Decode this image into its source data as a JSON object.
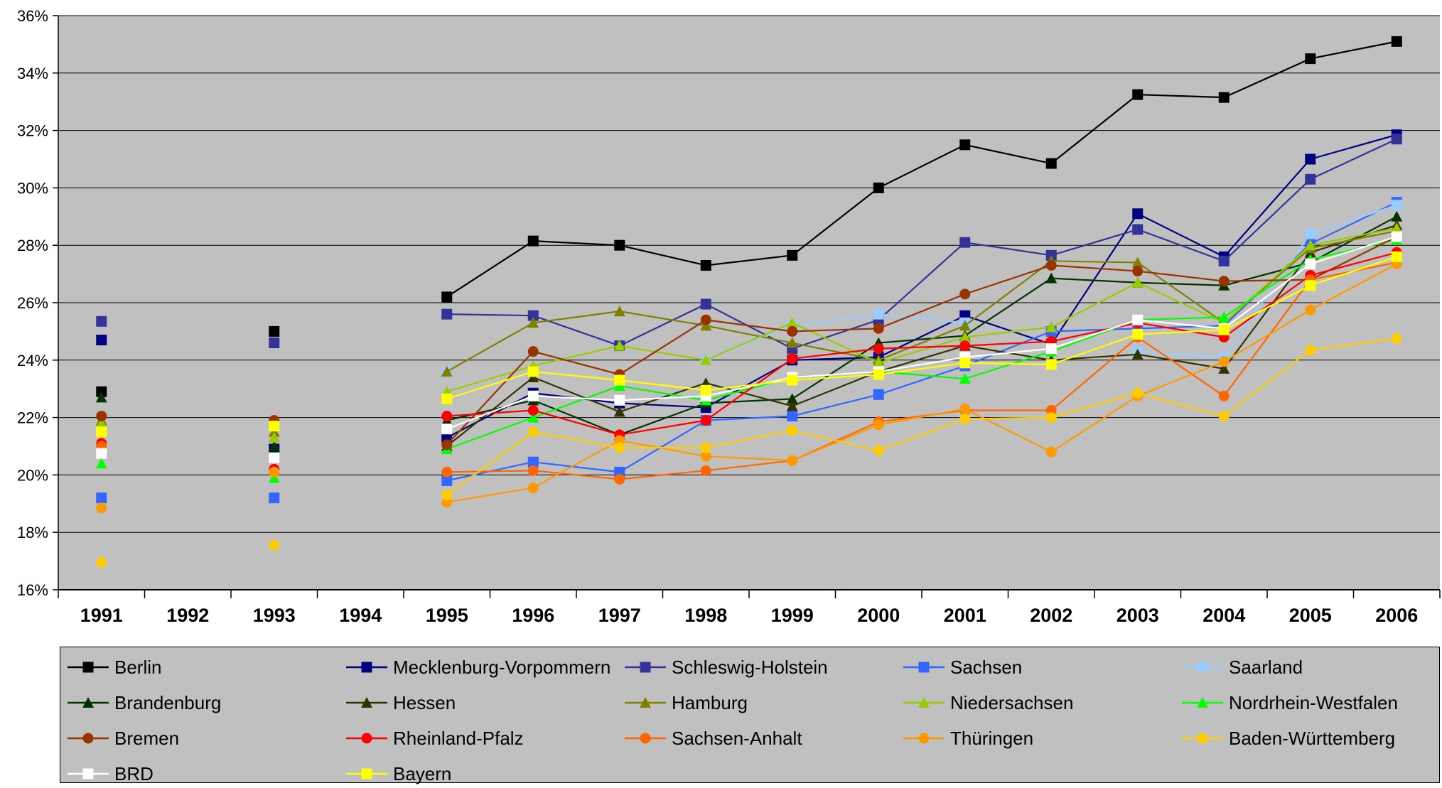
{
  "chart_data": {
    "type": "line",
    "title": "",
    "xlabel": "",
    "ylabel": "",
    "x": [
      "1991",
      "1992",
      "1993",
      "1994",
      "1995",
      "1996",
      "1997",
      "1998",
      "1999",
      "2000",
      "2001",
      "2002",
      "2003",
      "2004",
      "2005",
      "2006"
    ],
    "yticks": [
      "16%",
      "18%",
      "20%",
      "22%",
      "24%",
      "26%",
      "28%",
      "30%",
      "32%",
      "34%",
      "36%"
    ],
    "ylim": [
      16,
      36
    ],
    "y_unit": "%",
    "grid": "horizontal",
    "legend_position": "bottom",
    "series": [
      {
        "name": "Berlin",
        "color": "#000000",
        "marker": "square",
        "values": [
          22.9,
          null,
          25.0,
          null,
          26.2,
          28.15,
          28.0,
          27.3,
          27.65,
          30.0,
          31.5,
          30.85,
          33.25,
          33.15,
          34.5,
          35.1
        ]
      },
      {
        "name": "Mecklenburg-Vorpommern",
        "color": "#000080",
        "marker": "square",
        "values": [
          24.7,
          null,
          20.9,
          null,
          21.3,
          22.85,
          22.5,
          22.35,
          24.0,
          24.1,
          25.55,
          24.55,
          29.1,
          27.6,
          31.0,
          31.85
        ]
      },
      {
        "name": "Schleswig-Holstein",
        "color": "#333399",
        "marker": "square",
        "values": [
          25.35,
          null,
          24.6,
          null,
          25.6,
          25.55,
          24.5,
          25.95,
          24.4,
          25.4,
          28.1,
          27.65,
          28.55,
          27.45,
          30.3,
          31.7
        ]
      },
      {
        "name": "Sachsen",
        "color": "#3366ff",
        "marker": "square",
        "values": [
          19.2,
          null,
          19.2,
          null,
          19.8,
          20.45,
          20.1,
          21.9,
          22.05,
          22.8,
          23.8,
          25.0,
          25.1,
          25.2,
          28.05,
          29.5
        ]
      },
      {
        "name": "Saarland",
        "color": "#99ccff",
        "marker": "square",
        "values": [
          null,
          null,
          null,
          null,
          23.6,
          null,
          null,
          24.0,
          25.2,
          25.6,
          25.3,
          null,
          24.3,
          24.1,
          28.4,
          29.4
        ]
      },
      {
        "name": "Brandenburg",
        "color": "#003300",
        "marker": "triangle",
        "values": [
          22.7,
          null,
          21.0,
          null,
          21.9,
          22.6,
          21.4,
          22.5,
          22.65,
          24.6,
          24.85,
          26.85,
          26.7,
          26.6,
          27.4,
          29.0
        ]
      },
      {
        "name": "Hessen",
        "color": "#333300",
        "marker": "triangle",
        "values": [
          null,
          null,
          null,
          null,
          21.0,
          23.4,
          22.2,
          23.2,
          22.4,
          23.6,
          24.5,
          24.0,
          24.2,
          23.7,
          27.75,
          28.7
        ]
      },
      {
        "name": "Hamburg",
        "color": "#808000",
        "marker": "triangle",
        "values": [
          21.9,
          null,
          21.5,
          null,
          23.6,
          25.3,
          25.7,
          25.2,
          24.6,
          24.0,
          25.2,
          27.45,
          27.4,
          25.3,
          27.9,
          28.5
        ]
      },
      {
        "name": "Niedersachsen",
        "color": "#99cc00",
        "marker": "triangle",
        "values": [
          21.8,
          null,
          21.3,
          null,
          22.9,
          23.8,
          24.5,
          24.0,
          25.3,
          23.9,
          24.8,
          25.15,
          26.7,
          25.3,
          28.0,
          28.6
        ]
      },
      {
        "name": "Nordrhein-Westfalen",
        "color": "#00ff00",
        "marker": "triangle",
        "values": [
          20.4,
          null,
          19.9,
          null,
          20.9,
          22.0,
          23.1,
          22.6,
          23.4,
          23.6,
          23.35,
          24.3,
          25.4,
          25.5,
          27.5,
          28.2
        ]
      },
      {
        "name": "Bremen",
        "color": "#993300",
        "marker": "circle",
        "values": [
          22.05,
          null,
          21.9,
          null,
          21.05,
          24.3,
          23.5,
          25.4,
          25.0,
          25.1,
          26.3,
          27.3,
          27.1,
          26.75,
          26.8,
          28.3
        ]
      },
      {
        "name": "Rheinland-Pfalz",
        "color": "#ff0000",
        "marker": "circle",
        "values": [
          21.1,
          null,
          20.2,
          null,
          22.05,
          22.25,
          21.4,
          21.9,
          24.05,
          24.4,
          24.5,
          24.65,
          25.3,
          24.8,
          26.95,
          27.75
        ]
      },
      {
        "name": "Sachsen-Anhalt",
        "color": "#ff6600",
        "marker": "circle",
        "values": [
          21.0,
          null,
          20.1,
          null,
          20.1,
          20.15,
          19.85,
          20.15,
          20.5,
          21.85,
          22.25,
          22.25,
          24.8,
          22.75,
          26.8,
          27.4
        ]
      },
      {
        "name": "Thüringen",
        "color": "#ff9900",
        "marker": "circle",
        "values": [
          18.85,
          null,
          20.1,
          null,
          19.05,
          19.55,
          21.2,
          20.65,
          20.5,
          21.75,
          22.3,
          20.8,
          22.75,
          23.95,
          25.75,
          27.35
        ]
      },
      {
        "name": "Baden-Württemberg",
        "color": "#ffcc00",
        "marker": "circle",
        "values": [
          16.95,
          null,
          17.55,
          null,
          19.3,
          21.5,
          20.95,
          20.95,
          21.55,
          20.85,
          21.95,
          22.0,
          22.85,
          22.05,
          24.35,
          24.75
        ]
      },
      {
        "name": "BRD",
        "color": "#ffffff",
        "marker": "square",
        "values": [
          20.75,
          null,
          20.6,
          null,
          21.6,
          22.75,
          22.6,
          22.75,
          23.4,
          23.6,
          24.1,
          24.4,
          25.4,
          25.1,
          27.35,
          28.3
        ]
      },
      {
        "name": "Bayern",
        "color": "#ffff00",
        "marker": "square",
        "values": [
          21.5,
          null,
          21.7,
          null,
          22.65,
          23.6,
          23.3,
          22.95,
          23.3,
          23.5,
          23.9,
          23.85,
          24.9,
          25.05,
          26.6,
          27.6
        ]
      }
    ]
  }
}
